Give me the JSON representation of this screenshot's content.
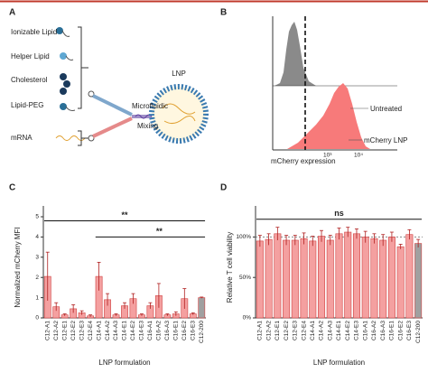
{
  "figure": {
    "A": {
      "panel": "A",
      "components": [
        "Ionizable Lipid",
        "Helper Lipid",
        "Cholesterol",
        "Lipid-PEG",
        "mRNA"
      ],
      "process": [
        "Microfluidic",
        "Mixing"
      ],
      "product": "LNP"
    },
    "B": {
      "panel": "B",
      "labels": [
        "Untreated",
        "mCherry LNP"
      ],
      "xlabel": "mCherry expression",
      "xticks": [
        "10³",
        "10⁴"
      ]
    }
  },
  "chart_data": [
    {
      "type": "bar",
      "panel": "C",
      "ylabel": "Normalized mCherry MFI",
      "xlabel": "LNP formulation",
      "categories": [
        "C12-A1",
        "C12-A2",
        "C12-E1",
        "C12-E2",
        "C12-E3",
        "C12-E4",
        "C14-A1",
        "C14-A2",
        "C14-A3",
        "C14-E1",
        "C14-E2",
        "C14-E3",
        "C16-A1",
        "C16-A2",
        "C16-A3",
        "C16-E1",
        "C16-E2",
        "C16-E3",
        "C12-200"
      ],
      "values": [
        2.05,
        0.55,
        0.15,
        0.45,
        0.25,
        0.1,
        2.05,
        0.9,
        0.15,
        0.6,
        0.95,
        0.15,
        0.6,
        1.1,
        0.15,
        0.2,
        0.95,
        0.2,
        1.0
      ],
      "errors": [
        1.2,
        0.2,
        0.05,
        0.2,
        0.1,
        0.05,
        0.7,
        0.3,
        0.05,
        0.15,
        0.25,
        0.05,
        0.15,
        0.6,
        0.05,
        0.1,
        0.5,
        0.05,
        0.03
      ],
      "colors": [
        "#f4a0a0",
        "#f4a0a0",
        "#f4a0a0",
        "#f4a0a0",
        "#f4a0a0",
        "#f4a0a0",
        "#f4a0a0",
        "#f4a0a0",
        "#f4a0a0",
        "#f4a0a0",
        "#f4a0a0",
        "#f4a0a0",
        "#f4a0a0",
        "#f4a0a0",
        "#f4a0a0",
        "#f4a0a0",
        "#f4a0a0",
        "#f4a0a0",
        "#a0a0a0"
      ],
      "ylim": [
        0,
        5
      ],
      "yticks": [
        0,
        1,
        2,
        3,
        4,
        5
      ],
      "annotations": [
        {
          "text": "**",
          "from": 0,
          "to": 18,
          "y": 4.8
        },
        {
          "text": "**",
          "from": 6,
          "to": 18,
          "y": 4.0
        }
      ]
    },
    {
      "type": "bar",
      "panel": "D",
      "ylabel": "Relative T cell viability",
      "xlabel": "LNP formulation",
      "categories": [
        "C12-A1",
        "C12-A2",
        "C12-E1",
        "C12-E2",
        "C12-E3",
        "C12-E4",
        "C14-A1",
        "C14-A2",
        "C14-A3",
        "C14-E1",
        "C14-E2",
        "C14-E3",
        "C16-A1",
        "C16-A2",
        "C16-A3",
        "C16-E1",
        "C16-E2",
        "C16-E3",
        "C12-200"
      ],
      "values": [
        95,
        97,
        104,
        96,
        96,
        98,
        95,
        101,
        96,
        104,
        106,
        104,
        100,
        98,
        96,
        100,
        88,
        103,
        92
      ],
      "errors": [
        7,
        7,
        8,
        6,
        6,
        7,
        6,
        7,
        6,
        7,
        6,
        6,
        7,
        6,
        7,
        6,
        3,
        6,
        5
      ],
      "colors": [
        "#f4a0a0",
        "#f4a0a0",
        "#f4a0a0",
        "#f4a0a0",
        "#f4a0a0",
        "#f4a0a0",
        "#f4a0a0",
        "#f4a0a0",
        "#f4a0a0",
        "#f4a0a0",
        "#f4a0a0",
        "#f4a0a0",
        "#f4a0a0",
        "#f4a0a0",
        "#f4a0a0",
        "#f4a0a0",
        "#f4a0a0",
        "#f4a0a0",
        "#a0a0a0"
      ],
      "ylim": [
        0,
        125
      ],
      "yticks": [
        {
          "value": 0,
          "label": "0%"
        },
        {
          "value": 50,
          "label": "50%"
        },
        {
          "value": 100,
          "label": "100%"
        }
      ],
      "reference": 100,
      "annotations": [
        {
          "text": "ns",
          "from": 0,
          "to": 18,
          "y": 122
        }
      ]
    }
  ]
}
